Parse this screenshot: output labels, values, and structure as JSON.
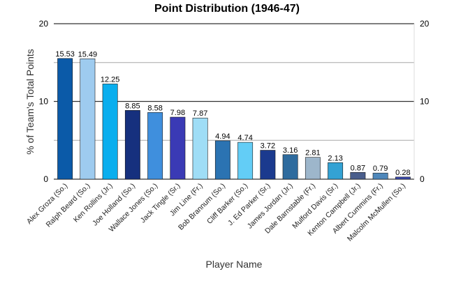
{
  "chart_data": {
    "type": "bar",
    "title": "Point Distribution (1946-47)",
    "xlabel": "Player Name",
    "ylabel": "% of Team's Total Points",
    "ylim": [
      0,
      20
    ],
    "yticks": [
      0,
      10,
      20
    ],
    "grid": true,
    "legend": "none",
    "categories": [
      "Alex Groza (So.)",
      "Ralph Beard (So.)",
      "Ken Rollins (Jr.)",
      "Joe Holland (So.)",
      "Wallace Jones (So.)",
      "Jack Tingle (Sr.)",
      "Jim Line (Fr.)",
      "Bob Brannum (So.)",
      "Cliff Barker (So.)",
      "J. Ed Parker (Sr.)",
      "James Jordan (Jr.)",
      "Dale Barnstable (Fr.)",
      "Mulford Davis (Sr.)",
      "Kenton Campbell (Jr.)",
      "Albert Cummins (Fr.)",
      "Malcolm McMullen (So.)"
    ],
    "values": [
      15.53,
      15.49,
      12.25,
      8.85,
      8.58,
      7.98,
      7.87,
      4.94,
      4.74,
      3.72,
      3.16,
      2.81,
      2.13,
      0.87,
      0.79,
      0.28
    ],
    "value_labels": [
      "15.53",
      "15.49",
      "12.25",
      "8.85",
      "8.58",
      "7.98",
      "7.87",
      "4.94",
      "4.74",
      "3.72",
      "3.16",
      "2.81",
      "2.13",
      "0.87",
      "0.79",
      "0.28"
    ],
    "colors": [
      "#0b5aa8",
      "#9ecbef",
      "#0aaeee",
      "#16307e",
      "#3f8fdd",
      "#3a3ab5",
      "#9fddf6",
      "#2b73b2",
      "#63cdf6",
      "#1b3a8e",
      "#2e6b9e",
      "#9db6cb",
      "#33a2d4",
      "#4a5e8c",
      "#4e87ba",
      "#3b4ab0"
    ]
  }
}
